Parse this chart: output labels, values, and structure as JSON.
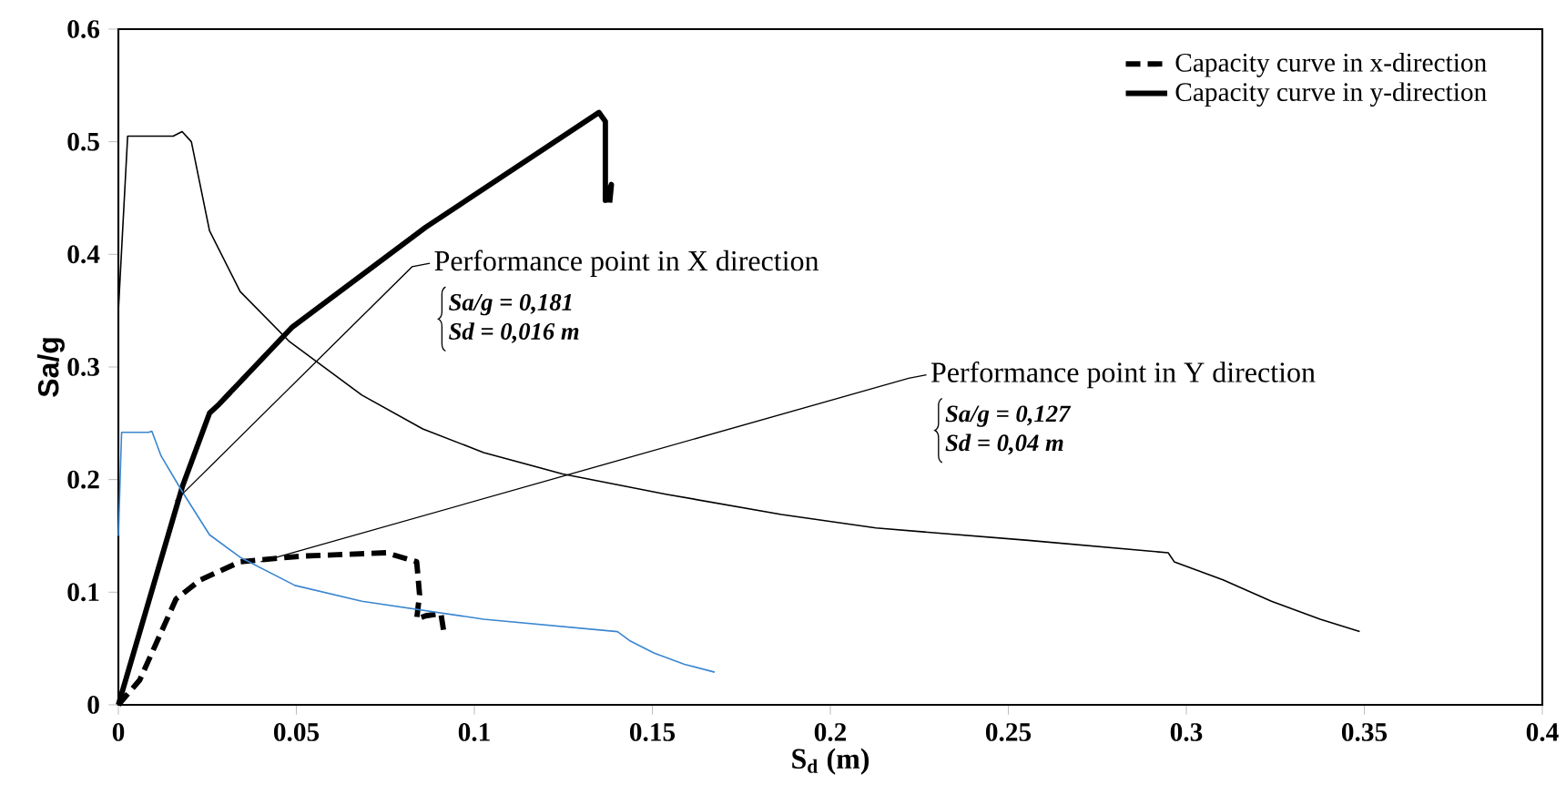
{
  "chart_data": {
    "type": "line",
    "xlabel": "S$_{d}$ (m)",
    "ylabel": "Sa/g",
    "xlim": [
      0,
      0.4
    ],
    "ylim": [
      0,
      0.6
    ],
    "xticks": [
      0,
      0.05,
      0.1,
      0.15,
      0.2,
      0.25,
      0.3,
      0.35,
      0.4
    ],
    "yticks": [
      0,
      0.1,
      0.2,
      0.3,
      0.4,
      0.5,
      0.6
    ],
    "legend": "top right",
    "grid": false,
    "marker": "none",
    "series": [
      {
        "name": "Capacity curve in x-direction",
        "color": "#000000",
        "line_style": "dashed",
        "x": [
          0,
          0.006,
          0.0162,
          0.0231,
          0.0342,
          0.0513,
          0.0752,
          0.0838,
          0.0846,
          0.0838,
          0.0863,
          0.0906,
          0.0915
        ],
        "values": [
          0,
          0.022,
          0.094,
          0.111,
          0.127,
          0.132,
          0.135,
          0.127,
          0.098,
          0.076,
          0.079,
          0.081,
          0.063
        ]
      },
      {
        "name": "Capacity curve in y-direction",
        "color": "#000000",
        "line_style": "solid",
        "x": [
          0,
          0.018,
          0.0256,
          0.0283,
          0.0487,
          0.0863,
          0.135,
          0.1368,
          0.1368,
          0.1385,
          0.138
        ],
        "values": [
          0,
          0.194,
          0.259,
          0.267,
          0.335,
          0.424,
          0.526,
          0.518,
          0.448,
          0.462,
          0.446
        ]
      },
      {
        "color": "#000000",
        "line_style": "solid",
        "x": [
          0,
          0.0026,
          0.0154,
          0.0179,
          0.0205,
          0.0256,
          0.0342,
          0.0479,
          0.0684,
          0.0855,
          0.1026,
          0.1248,
          0.1538,
          0.1863,
          0.2128,
          0.2556,
          0.2949,
          0.2966,
          0.3103,
          0.3239,
          0.3376,
          0.3487
        ],
        "values": [
          0.35,
          0.505,
          0.505,
          0.509,
          0.5,
          0.421,
          0.367,
          0.323,
          0.275,
          0.245,
          0.224,
          0.205,
          0.187,
          0.169,
          0.157,
          0.146,
          0.135,
          0.127,
          0.111,
          0.092,
          0.076,
          0.065
        ]
      },
      {
        "color": "#3a86d0",
        "line_style": "solid",
        "x": [
          0,
          0.0009,
          0.0085,
          0.0094,
          0.012,
          0.018,
          0.0256,
          0.0342,
          0.0496,
          0.0684,
          0.1026,
          0.1402,
          0.1436,
          0.1504,
          0.159,
          0.1675
        ],
        "values": [
          0.15,
          0.242,
          0.242,
          0.243,
          0.221,
          0.189,
          0.151,
          0.131,
          0.106,
          0.092,
          0.076,
          0.065,
          0.057,
          0.046,
          0.036,
          0.029
        ]
      }
    ],
    "annotations": [
      {
        "text": "Performance point in X direction",
        "x": 0.016,
        "y": 0.181
      },
      "Sa/g = 0,181",
      "Sd = 0,016 m",
      {
        "text": "Performance point in Y direction",
        "x": 0.04,
        "y": 0.127
      },
      "Sa/g = 0,127",
      "Sd = 0,04 m"
    ]
  }
}
